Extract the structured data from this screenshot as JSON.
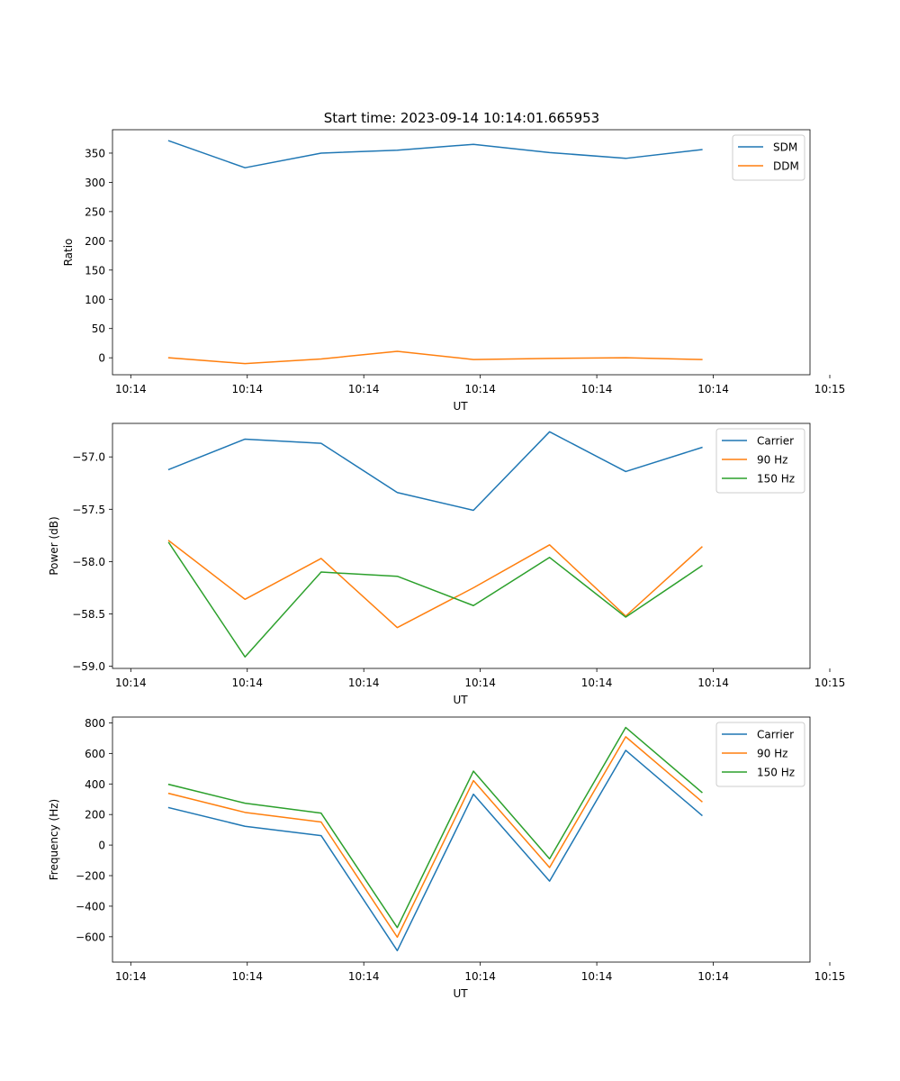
{
  "figure": {
    "title": "Start time: 2023-09-14 10:14:01.665953"
  },
  "colors": {
    "blue": "#1f77b4",
    "orange": "#ff7f0e",
    "green": "#2ca02c"
  },
  "chart_data": [
    {
      "type": "line",
      "xlabel": "UT",
      "ylabel": "Ratio",
      "x": [
        1,
        2,
        3,
        4,
        5,
        6,
        7,
        8
      ],
      "xlim": [
        0.26,
        9.42
      ],
      "x_ticks": [
        0.5,
        2.03,
        3.56,
        5.09,
        6.62,
        8.15,
        9.68
      ],
      "x_tick_labels": [
        "10:14",
        "10:14",
        "10:14",
        "10:14",
        "10:14",
        "10:14",
        "10:15"
      ],
      "ylim": [
        -29,
        390
      ],
      "y_ticks": [
        0,
        50,
        100,
        150,
        200,
        250,
        300,
        350
      ],
      "legend": "top-right",
      "series": [
        {
          "name": "SDM",
          "color": "blue",
          "values": [
            371,
            325,
            350,
            355,
            365,
            351,
            341,
            356
          ]
        },
        {
          "name": "DDM",
          "color": "orange",
          "values": [
            0,
            -10,
            -2,
            11,
            -3,
            -1,
            0,
            -3
          ]
        }
      ]
    },
    {
      "type": "line",
      "xlabel": "UT",
      "ylabel": "Power (dB)",
      "x": [
        1,
        2,
        3,
        4,
        5,
        6,
        7,
        8
      ],
      "xlim": [
        0.26,
        9.42
      ],
      "x_ticks": [
        0.5,
        2.03,
        3.56,
        5.09,
        6.62,
        8.15,
        9.68
      ],
      "x_tick_labels": [
        "10:14",
        "10:14",
        "10:14",
        "10:14",
        "10:14",
        "10:14",
        "10:15"
      ],
      "ylim": [
        -59.02,
        -56.68
      ],
      "y_ticks": [
        -59.0,
        -58.5,
        -58.0,
        -57.5,
        -57.0
      ],
      "y_tick_labels": [
        "−59.0",
        "−58.5",
        "−58.0",
        "−57.5",
        "−57.0"
      ],
      "legend": "top-right",
      "series": [
        {
          "name": "Carrier",
          "color": "blue",
          "values": [
            -57.12,
            -56.83,
            -56.87,
            -57.34,
            -57.51,
            -56.76,
            -57.14,
            -56.91
          ]
        },
        {
          "name": "90 Hz",
          "color": "orange",
          "values": [
            -57.8,
            -58.36,
            -57.97,
            -58.63,
            -58.25,
            -57.84,
            -58.52,
            -57.86
          ]
        },
        {
          "name": "150 Hz",
          "color": "green",
          "values": [
            -57.82,
            -58.91,
            -58.1,
            -58.14,
            -58.42,
            -57.96,
            -58.53,
            -58.04
          ]
        }
      ]
    },
    {
      "type": "line",
      "xlabel": "UT",
      "ylabel": "Frequency (Hz)",
      "x": [
        1,
        2,
        3,
        4,
        5,
        6,
        7,
        8
      ],
      "xlim": [
        0.26,
        9.42
      ],
      "x_ticks": [
        0.5,
        2.03,
        3.56,
        5.09,
        6.62,
        8.15,
        9.68
      ],
      "x_tick_labels": [
        "10:14",
        "10:14",
        "10:14",
        "10:14",
        "10:14",
        "10:14",
        "10:15"
      ],
      "ylim": [
        -766,
        838
      ],
      "y_ticks": [
        -600,
        -400,
        -200,
        0,
        200,
        400,
        600,
        800
      ],
      "y_tick_labels": [
        "−600",
        "−400",
        "−200",
        "0",
        "200",
        "400",
        "600",
        "800"
      ],
      "legend": "top-right",
      "series": [
        {
          "name": "Carrier",
          "color": "blue",
          "values": [
            245,
            123,
            62,
            -691,
            333,
            -236,
            620,
            195
          ]
        },
        {
          "name": "90 Hz",
          "color": "orange",
          "values": [
            338,
            214,
            151,
            -603,
            422,
            -147,
            709,
            285
          ]
        },
        {
          "name": "150 Hz",
          "color": "green",
          "values": [
            397,
            274,
            209,
            -540,
            484,
            -90,
            770,
            345
          ]
        }
      ]
    }
  ]
}
